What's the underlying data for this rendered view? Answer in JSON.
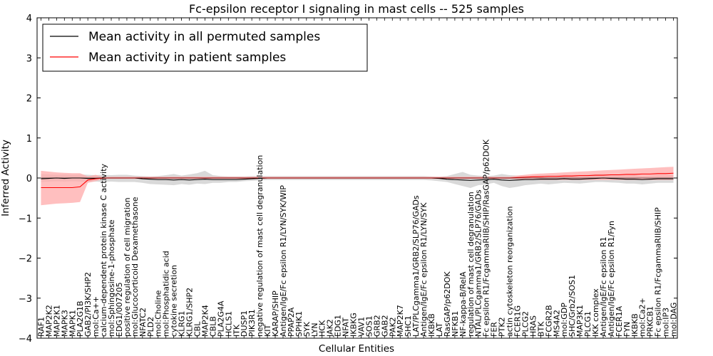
{
  "chart_data": {
    "type": "line",
    "title": "Fc-epsilon receptor I signaling in mast cells -- 525 samples",
    "xlabel": "Cellular Entities",
    "ylabel": "Inferred Activity",
    "ylim": [
      -4,
      4
    ],
    "yticks": [
      -4,
      -3,
      -2,
      -1,
      0,
      1,
      2,
      3,
      4
    ],
    "ytick_labels": [
      "−4",
      "−3",
      "−2",
      "−1",
      "0",
      "1",
      "2",
      "3",
      "4"
    ],
    "grid": false,
    "legend_position": "top-left",
    "categories": [
      "RAF1",
      "MAP2K2",
      "MAP2K1",
      "MAPK3",
      "MAPK1",
      "PLA2G1B",
      "GAB2/PI3K/SHP2",
      "mol:Ca++",
      "calcium-dependent protein kinase C activity",
      "mol:Sphingosine-1-phosphate",
      "EDG1/007205",
      "positive regulation of cell migration",
      "mol:Glucocorticoid Dexamethasone",
      "NFATC2",
      "PLD2",
      "mol:Choline",
      "mol:Phosphatidic acid",
      "cytokine secretion",
      "KLRG1",
      "KLRG1/SHP2",
      "CBL",
      "MAP2K4",
      "CBLB",
      "PLA2G4A",
      "HCLS1",
      "ITK",
      "DUSP1",
      "PIK3R1",
      "negative regulation of mast cell degranulation",
      "KIT",
      "KARAP/SHIP",
      "Antigen/IgE/Fc epsilon R1/LYN/SYK/WIP",
      "PPAP2A",
      "SPHK1",
      "SYK",
      "LYN",
      "HCK",
      "JAK2",
      "EDG1",
      "NFAT",
      "IKBKG",
      "VAV1",
      "SOS1",
      "GRB2",
      "GAB2",
      "PAK2",
      "MAP2K7",
      "SHC1",
      "LAT/PLCgamma1/GRB2/SLP76/GADs",
      "Antigen/IgE/Fc epsilon R1/LYN/SYK",
      "IKBKB",
      "LAT",
      "RasGAP/p62DOK",
      "NFKB1",
      "NF-kappa-B/RelA",
      "regulation of mast cell degranulation",
      "NTAL/PLCgamma1/GRB2/SLP76/GADs",
      "Fc epsilon R1/FcgammaRIIB/SHIP/RasGAP/p62DOK",
      "FER",
      "PTK2",
      "actin cytoskeleton reorganization",
      "FCER1G",
      "PLCG2",
      "HRAS",
      "BTK",
      "FCGR2B",
      "MS4A2",
      "mol:GDP",
      "SHC/Grb2/SOS1",
      "MAP3K1",
      "PLCG1",
      "IKK complex",
      "Antigen/IgE/Fc epsilon R1",
      "Antigen/IgE/Fc epsilon R1/Fyn",
      "FCER1A",
      "FYN",
      "IKBKB",
      "mol:Ca2+",
      "PRKCB1",
      "Fc epsilon R1/FcgammaRIIB/SHIP",
      "mol:IP3",
      "mol:DAG"
    ],
    "series": [
      {
        "name": "Mean activity in all permuted samples",
        "color": "#000000",
        "values": [
          -0.02,
          -0.01,
          0.0,
          -0.01,
          0.0,
          0.0,
          -0.01,
          -0.01,
          0.0,
          0.0,
          0.0,
          0.0,
          0.0,
          -0.02,
          -0.03,
          -0.04,
          -0.04,
          -0.05,
          -0.04,
          -0.05,
          -0.04,
          -0.03,
          -0.04,
          -0.04,
          -0.04,
          -0.04,
          -0.03,
          -0.02,
          -0.01,
          0.0,
          0.0,
          0.0,
          0.0,
          0.0,
          0.0,
          0.0,
          0.0,
          0.0,
          0.0,
          0.0,
          0.0,
          0.0,
          0.0,
          0.0,
          0.0,
          0.0,
          0.0,
          0.0,
          0.0,
          0.0,
          0.0,
          -0.01,
          -0.03,
          -0.04,
          -0.05,
          -0.06,
          -0.05,
          -0.04,
          -0.03,
          -0.05,
          -0.06,
          -0.05,
          -0.04,
          -0.04,
          -0.03,
          -0.03,
          -0.03,
          -0.02,
          -0.03,
          -0.03,
          -0.02,
          -0.01,
          0.0,
          -0.01,
          -0.02,
          -0.03,
          -0.03,
          -0.04,
          -0.03,
          -0.02,
          -0.02,
          -0.02
        ]
      },
      {
        "name": "Mean activity in patient samples",
        "color": "#ff0000",
        "values": [
          -0.24,
          -0.24,
          -0.24,
          -0.24,
          -0.24,
          -0.22,
          -0.05,
          -0.02,
          0.0,
          0.0,
          0.0,
          0.0,
          0.0,
          0.0,
          0.0,
          0.0,
          0.0,
          0.0,
          0.0,
          0.0,
          0.0,
          0.0,
          0.0,
          0.0,
          0.0,
          0.0,
          0.0,
          0.0,
          0.0,
          0.0,
          0.0,
          0.0,
          0.0,
          0.0,
          0.0,
          0.0,
          0.0,
          0.0,
          0.0,
          0.0,
          0.0,
          0.0,
          0.0,
          0.0,
          0.0,
          0.0,
          0.0,
          0.0,
          0.0,
          0.0,
          0.0,
          0.0,
          0.0,
          0.0,
          0.0,
          0.0,
          0.0,
          0.0,
          0.0,
          0.0,
          0.0,
          0.01,
          0.02,
          0.03,
          0.03,
          0.04,
          0.04,
          0.05,
          0.05,
          0.06,
          0.06,
          0.07,
          0.07,
          0.08,
          0.08,
          0.09,
          0.09,
          0.1,
          0.1,
          0.11,
          0.11,
          0.12
        ]
      }
    ],
    "bands": [
      {
        "name": "permuted std band",
        "color": "#bfbfbf",
        "lower": [
          -0.1,
          -0.09,
          -0.08,
          -0.09,
          -0.08,
          -0.09,
          -0.1,
          -0.09,
          -0.1,
          -0.09,
          -0.1,
          -0.1,
          -0.1,
          -0.12,
          -0.15,
          -0.16,
          -0.17,
          -0.18,
          -0.15,
          -0.17,
          -0.14,
          -0.15,
          -0.12,
          -0.12,
          -0.1,
          -0.1,
          -0.08,
          -0.07,
          -0.06,
          -0.05,
          -0.05,
          -0.05,
          -0.05,
          -0.05,
          -0.05,
          -0.05,
          -0.05,
          -0.05,
          -0.05,
          -0.05,
          -0.05,
          -0.05,
          -0.05,
          -0.05,
          -0.05,
          -0.05,
          -0.05,
          -0.05,
          -0.05,
          -0.05,
          -0.06,
          -0.08,
          -0.1,
          -0.15,
          -0.2,
          -0.25,
          -0.18,
          -0.16,
          -0.12,
          -0.2,
          -0.25,
          -0.22,
          -0.18,
          -0.16,
          -0.14,
          -0.16,
          -0.14,
          -0.12,
          -0.13,
          -0.14,
          -0.12,
          -0.1,
          -0.1,
          -0.11,
          -0.12,
          -0.14,
          -0.14,
          -0.16,
          -0.14,
          -0.12,
          -0.12,
          -0.12
        ],
        "upper": [
          0.1,
          0.09,
          0.08,
          0.09,
          0.08,
          0.09,
          0.08,
          0.07,
          0.08,
          0.07,
          0.08,
          0.08,
          0.06,
          0.05,
          0.04,
          0.05,
          0.07,
          0.1,
          0.06,
          0.09,
          0.12,
          0.18,
          0.07,
          0.05,
          0.04,
          0.04,
          0.04,
          0.05,
          0.05,
          0.05,
          0.05,
          0.05,
          0.05,
          0.05,
          0.05,
          0.05,
          0.05,
          0.05,
          0.05,
          0.05,
          0.05,
          0.05,
          0.05,
          0.05,
          0.05,
          0.05,
          0.05,
          0.05,
          0.05,
          0.05,
          0.04,
          0.03,
          0.05,
          0.1,
          0.15,
          0.08,
          0.06,
          0.05,
          0.06,
          0.1,
          0.07,
          0.06,
          0.06,
          0.05,
          0.07,
          0.07,
          0.07,
          0.08,
          0.07,
          0.07,
          0.08,
          0.09,
          0.1,
          0.09,
          0.07,
          0.06,
          0.07,
          0.05,
          0.06,
          0.07,
          0.07,
          0.08
        ]
      },
      {
        "name": "patient std band",
        "color": "#ffaaaa",
        "lower": [
          -0.68,
          -0.66,
          -0.64,
          -0.63,
          -0.62,
          -0.6,
          -0.12,
          -0.08,
          -0.02,
          -0.02,
          -0.02,
          -0.02,
          -0.02,
          -0.02,
          -0.02,
          -0.02,
          -0.02,
          -0.02,
          -0.02,
          -0.02,
          -0.02,
          -0.02,
          -0.02,
          -0.02,
          -0.02,
          -0.02,
          -0.02,
          -0.02,
          -0.02,
          -0.02,
          -0.02,
          -0.02,
          -0.02,
          -0.02,
          -0.02,
          -0.02,
          -0.02,
          -0.02,
          -0.02,
          -0.02,
          -0.02,
          -0.02,
          -0.02,
          -0.02,
          -0.02,
          -0.02,
          -0.02,
          -0.02,
          -0.02,
          -0.02,
          -0.02,
          -0.02,
          -0.02,
          -0.02,
          -0.02,
          -0.02,
          -0.02,
          -0.02,
          -0.02,
          -0.02,
          -0.02,
          -0.03,
          -0.04,
          -0.04,
          -0.05,
          -0.05,
          -0.05,
          -0.05,
          -0.05,
          -0.05,
          -0.05,
          -0.05,
          -0.05,
          -0.05,
          -0.05,
          -0.05,
          -0.05,
          -0.05,
          -0.05,
          -0.05,
          -0.05,
          -0.05
        ],
        "upper": [
          0.18,
          0.16,
          0.14,
          0.13,
          0.12,
          0.12,
          0.04,
          0.08,
          0.02,
          0.03,
          0.03,
          0.03,
          0.03,
          0.03,
          0.03,
          0.03,
          0.03,
          0.03,
          0.03,
          0.03,
          0.03,
          0.03,
          0.03,
          0.03,
          0.03,
          0.03,
          0.03,
          0.03,
          0.03,
          0.03,
          0.03,
          0.03,
          0.03,
          0.03,
          0.03,
          0.03,
          0.03,
          0.03,
          0.03,
          0.03,
          0.03,
          0.03,
          0.03,
          0.03,
          0.03,
          0.03,
          0.03,
          0.03,
          0.03,
          0.03,
          0.03,
          0.03,
          0.03,
          0.03,
          0.03,
          0.03,
          0.03,
          0.03,
          0.03,
          0.03,
          0.03,
          0.06,
          0.08,
          0.1,
          0.11,
          0.12,
          0.13,
          0.14,
          0.15,
          0.16,
          0.17,
          0.18,
          0.19,
          0.2,
          0.21,
          0.22,
          0.23,
          0.24,
          0.25,
          0.26,
          0.27,
          0.28
        ]
      }
    ]
  }
}
